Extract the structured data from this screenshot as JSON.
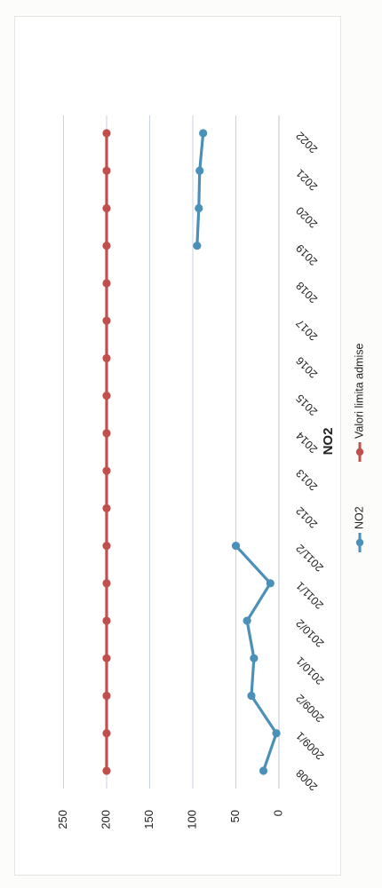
{
  "chart_data": {
    "type": "line",
    "title": "NO2",
    "categories": [
      "2008",
      "2009/1",
      "2009/2",
      "2010/1",
      "2010/2",
      "2011/1",
      "2011/2",
      "2012",
      "2013",
      "2014",
      "2015",
      "2016",
      "2017",
      "2018",
      "2019",
      "2020",
      "2021",
      "2022"
    ],
    "series": [
      {
        "name": "NO2",
        "color": "#4a90b8",
        "values": [
          18,
          3,
          32,
          29,
          37,
          10,
          50,
          null,
          null,
          null,
          null,
          null,
          null,
          null,
          95,
          93,
          92,
          88
        ]
      },
      {
        "name": "Valori limita admise",
        "color": "#c0504d",
        "values": [
          200,
          200,
          200,
          200,
          200,
          200,
          200,
          200,
          200,
          200,
          200,
          200,
          200,
          200,
          200,
          200,
          200,
          200
        ]
      }
    ],
    "y_ticks": [
      0,
      50,
      100,
      150,
      200,
      250
    ],
    "ylim": [
      0,
      250
    ],
    "grid": true,
    "legend_position": "bottom",
    "orientation": "rotated 90 degrees clockwise"
  }
}
